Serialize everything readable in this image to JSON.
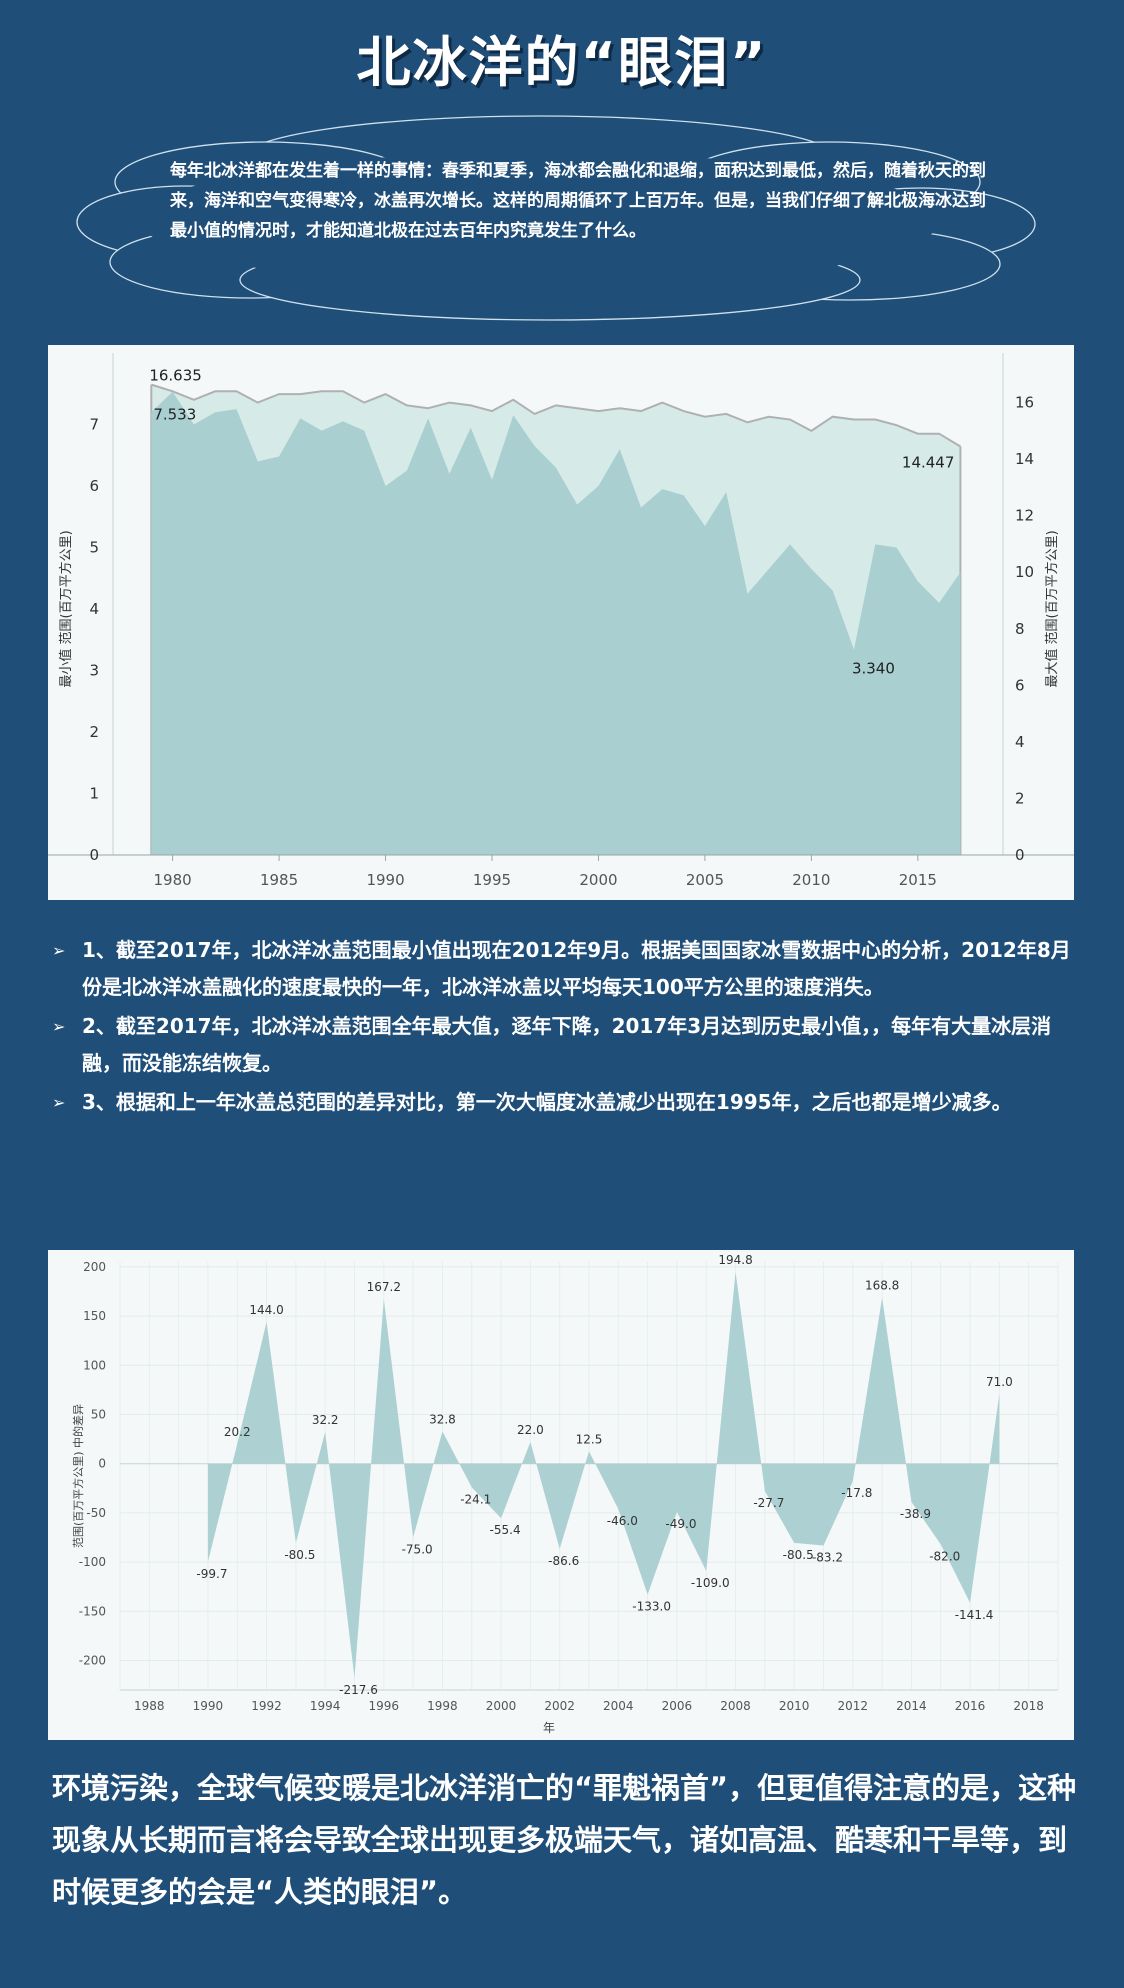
{
  "page": {
    "title": "北冰洋的“眼泪”",
    "intro": "每年北冰洋都在发生着一样的事情：春季和夏季，海冰都会融化和退缩，面积达到最低，然后，随着秋天的到来，海洋和空气变得寒冷，冰盖再次增长。这样的周期循环了上百万年。但是，当我们仔细了解北极海冰达到最小值的情况时，才能知道北极在过去百年内究竟发生了什么。",
    "bullets": [
      "1、截至2017年，北冰洋冰盖范围最小值出现在2012年9月。根据美国国家冰雪数据中心的分析，2012年8月份是北冰洋冰盖融化的速度最快的一年，北冰洋冰盖以平均每天100平方公里的速度消失。",
      "2、截至2017年，北冰洋冰盖范围全年最大值，逐年下降，2017年3月达到历史最小值，，每年有大量冰层消融，而没能冻结恢复。",
      "3、根据和上一年冰盖总范围的差异对比，第一次大幅度冰盖减少出现在1995年，之后也都是增少减多。"
    ],
    "conclusion": "环境污染，全球气候变暖是北冰洋消亡的“罪魁祸首”，但更值得注意的是，这种现象从长期而言将会导致全球出现更多极端天气，诸如高温、酷寒和干旱等，到时候更多的会是“人类的眼泪”。",
    "colors": {
      "background": "#1f4e79",
      "panel": "#f4f8f8",
      "area_fill": "#a9cfd1",
      "max_fill": "#d6ebe8",
      "max_line": "#b0b0b0"
    }
  },
  "chart_data": [
    {
      "type": "area",
      "ylabel": "最小值 范围(百万平方公里)",
      "y2label": "最大值 范围(百万平方公里)",
      "ylim": [
        0,
        8
      ],
      "y2lim": [
        0,
        17.4
      ],
      "yticks": [
        0,
        1,
        2,
        3,
        4,
        5,
        6,
        7
      ],
      "y2ticks": [
        0,
        2,
        4,
        6,
        8,
        10,
        12,
        14,
        16
      ],
      "xlim": [
        1977.2,
        2019
      ],
      "xticks": [
        1980,
        1985,
        1990,
        1995,
        2000,
        2005,
        2010,
        2015
      ],
      "grid": false,
      "series": [
        {
          "axis": "right",
          "x": [
            1979,
            1980,
            1981,
            1982,
            1983,
            1984,
            1985,
            1986,
            1987,
            1988,
            1989,
            1990,
            1991,
            1992,
            1993,
            1994,
            1995,
            1996,
            1997,
            1998,
            1999,
            2000,
            2001,
            2002,
            2003,
            2004,
            2005,
            2006,
            2007,
            2008,
            2009,
            2010,
            2011,
            2012,
            2013,
            2014,
            2015,
            2016,
            2017
          ],
          "values": [
            16.635,
            16.4,
            16.1,
            16.4,
            16.4,
            16.0,
            16.3,
            16.3,
            16.4,
            16.4,
            16.0,
            16.3,
            15.9,
            15.8,
            16.0,
            15.9,
            15.7,
            16.1,
            15.6,
            15.9,
            15.8,
            15.7,
            15.8,
            15.7,
            16.0,
            15.7,
            15.5,
            15.6,
            15.3,
            15.5,
            15.4,
            15.0,
            15.5,
            15.4,
            15.4,
            15.2,
            14.9,
            14.9,
            14.447
          ]
        },
        {
          "axis": "left",
          "x": [
            1979,
            1980,
            1981,
            1982,
            1983,
            1984,
            1985,
            1986,
            1987,
            1988,
            1989,
            1990,
            1991,
            1992,
            1993,
            1994,
            1995,
            1996,
            1997,
            1998,
            1999,
            2000,
            2001,
            2002,
            2003,
            2004,
            2005,
            2006,
            2007,
            2008,
            2009,
            2010,
            2011,
            2012,
            2013,
            2014,
            2015,
            2016,
            2017
          ],
          "values": [
            7.2,
            7.533,
            7.0,
            7.2,
            7.25,
            6.4,
            6.48,
            7.1,
            6.9,
            7.05,
            6.9,
            6.0,
            6.25,
            7.1,
            6.2,
            6.95,
            6.1,
            7.15,
            6.65,
            6.3,
            5.7,
            6.0,
            6.6,
            5.65,
            5.95,
            5.85,
            5.35,
            5.9,
            4.25,
            4.65,
            5.05,
            4.65,
            4.3,
            3.34,
            5.05,
            5.0,
            4.45,
            4.1,
            4.6
          ]
        }
      ],
      "annotations": [
        "16.635",
        "7.533",
        "14.447",
        "3.340"
      ]
    },
    {
      "type": "area",
      "xlabel": "年",
      "ylabel": "范围(百万平方公里) 中的差异",
      "xlim": [
        1987,
        2019
      ],
      "ylim": [
        -230,
        205
      ],
      "xticks": [
        1988,
        1990,
        1992,
        1994,
        1996,
        1998,
        2000,
        2002,
        2004,
        2006,
        2008,
        2010,
        2012,
        2014,
        2016,
        2018
      ],
      "yticks": [
        200,
        150,
        100,
        50,
        0,
        -50,
        -100,
        -150,
        -200
      ],
      "grid": true,
      "x": [
        1990,
        1991,
        1992,
        1993,
        1994,
        1995,
        1996,
        1997,
        1998,
        1999,
        2000,
        2001,
        2002,
        2003,
        2004,
        2005,
        2006,
        2007,
        2008,
        2009,
        2010,
        2011,
        2012,
        2013,
        2014,
        2015,
        2016,
        2017
      ],
      "values": [
        -99.7,
        20.2,
        144.0,
        -80.5,
        32.2,
        -217.6,
        167.2,
        -75.0,
        32.8,
        -24.1,
        -55.4,
        22.0,
        -86.6,
        12.5,
        -46.0,
        -133.0,
        -49.0,
        -109.0,
        194.8,
        -27.7,
        -80.5,
        -83.2,
        -17.8,
        168.8,
        -38.9,
        -82.0,
        -141.4,
        71.0
      ],
      "labels": [
        "-99.7",
        "20.2",
        "144.0",
        "-80.5",
        "32.2",
        "-217.6",
        "167.2",
        "-75.0",
        "32.8",
        "-24.1",
        "-55.4",
        "22.0",
        "-86.6",
        "12.5",
        "-46.0",
        "-133.0",
        "-49.0",
        "-109.0",
        "194.8",
        "-27.7",
        "-80.5",
        "-83.2",
        "-17.8",
        "168.8",
        "-38.9",
        "-82.0",
        "-141.4",
        "71.0"
      ]
    }
  ]
}
